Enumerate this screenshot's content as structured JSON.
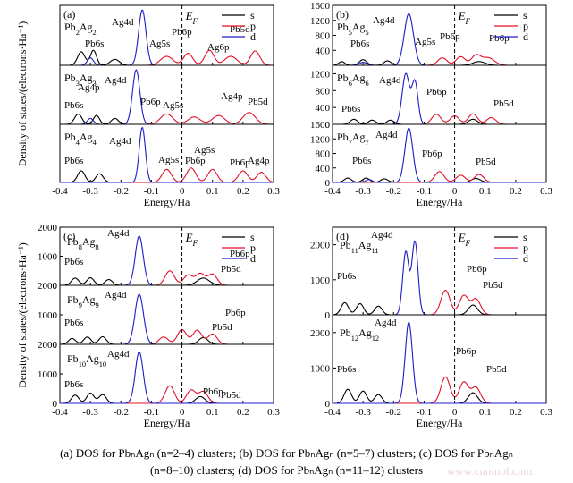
{
  "caption": {
    "line1": "(a) DOS for PbₙAgₙ (n=2–4) clusters; (b) DOS for PbₙAgₙ (n=5–7) clusters; (c) DOS for PbₙAgₙ",
    "line2": "(n=8–10) clusters; (d) DOS for PbₙAgₙ (n=11–12) clusters"
  },
  "watermark": "www.cnnmol.com",
  "colors": {
    "s": "#000000",
    "p": "#e0102a",
    "d": "#1c1cc8"
  },
  "chart_data": [
    {
      "id": "a",
      "type": "line",
      "panel_label": "(a)",
      "xlabel": "Energy/Ha",
      "ylabel": "Density of states/(electrons·Ha⁻¹)",
      "xlim": [
        -0.4,
        0.3
      ],
      "xticks": [
        "-0.4",
        "-0.3",
        "-0.2",
        "-0.1",
        "0",
        "0.1",
        "0.2",
        "0.3"
      ],
      "fermi_label": "EF",
      "fermi_x": 0,
      "legend": [
        "s",
        "p",
        "d"
      ],
      "legend_position": "top-right",
      "subplots": [
        {
          "cluster": "Pb2Ag2",
          "ylim": [
            0,
            200
          ],
          "yticks": [],
          "peaks": {
            "s": [
              [
                -0.33,
                45,
                0.012
              ],
              [
                -0.29,
                50,
                0.01
              ],
              [
                -0.22,
                20,
                0.015
              ]
            ],
            "p": [
              [
                -0.05,
                30,
                0.02
              ],
              [
                0.02,
                40,
                0.015
              ],
              [
                0.09,
                50,
                0.015
              ],
              [
                0.16,
                30,
                0.02
              ],
              [
                0.24,
                48,
                0.015
              ]
            ],
            "d": [
              [
                -0.13,
                185,
                0.012
              ],
              [
                -0.3,
                25,
                0.01
              ]
            ]
          },
          "annotations": [
            "Ag4d",
            "Pb6s",
            "Ag5s",
            "Pb6p",
            "Ag6p",
            "Pb5d"
          ]
        },
        {
          "cluster": "Pb3Ag3",
          "ylim": [
            0,
            200
          ],
          "yticks": [],
          "peaks": {
            "s": [
              [
                -0.34,
                35,
                0.012
              ],
              [
                -0.28,
                30,
                0.01
              ],
              [
                -0.22,
                20,
                0.012
              ]
            ],
            "p": [
              [
                -0.05,
                35,
                0.02
              ],
              [
                0.04,
                25,
                0.02
              ],
              [
                0.12,
                30,
                0.02
              ],
              [
                0.22,
                40,
                0.02
              ]
            ],
            "d": [
              [
                -0.15,
                185,
                0.012
              ],
              [
                -0.3,
                20,
                0.01
              ]
            ]
          },
          "annotations": [
            "Ag4d",
            "Pb6s",
            "Ag4p",
            "Pb6p",
            "Ag5s",
            "Ag4p",
            "Pb5d"
          ]
        },
        {
          "cluster": "Pb4Ag4",
          "ylim": [
            0,
            200
          ],
          "yticks": [],
          "peaks": {
            "s": [
              [
                -0.33,
                40,
                0.012
              ],
              [
                -0.27,
                30,
                0.012
              ]
            ],
            "p": [
              [
                -0.05,
                45,
                0.015
              ],
              [
                0.03,
                50,
                0.015
              ],
              [
                0.1,
                45,
                0.015
              ],
              [
                0.2,
                40,
                0.015
              ],
              [
                0.26,
                35,
                0.015
              ]
            ],
            "d": [
              [
                -0.13,
                190,
                0.01
              ]
            ]
          },
          "annotations": [
            "Ag4d",
            "Pb6s",
            "Ag5s",
            "Pb6p",
            "Ag5s",
            "Pb6p",
            "Ag4p"
          ]
        }
      ]
    },
    {
      "id": "b",
      "type": "line",
      "panel_label": "(b)",
      "xlabel": "Energy/Ha",
      "ylabel": "",
      "xlim": [
        -0.4,
        0.3
      ],
      "xticks": [
        "-0.4",
        "-0.3",
        "-0.2",
        "-0.1",
        "0",
        "0.1",
        "0.2",
        "0.3"
      ],
      "fermi_label": "EF",
      "fermi_x": 0,
      "legend": [
        "s",
        "p",
        "d"
      ],
      "legend_position": "top-right",
      "subplots": [
        {
          "cluster": "Pb5Ag5",
          "ylim": [
            0,
            1600
          ],
          "yticks": [
            400,
            800,
            1200,
            1600
          ],
          "peaks": {
            "s": [
              [
                -0.37,
                100,
                0.01
              ],
              [
                -0.3,
                150,
                0.012
              ],
              [
                -0.22,
                120,
                0.012
              ],
              [
                0.08,
                100,
                0.02
              ]
            ],
            "p": [
              [
                -0.04,
                200,
                0.015
              ],
              [
                0.02,
                230,
                0.015
              ],
              [
                0.07,
                260,
                0.015
              ],
              [
                0.11,
                200,
                0.02
              ]
            ],
            "d": [
              [
                -0.15,
                1380,
                0.015
              ],
              [
                -0.3,
                80,
                0.012
              ]
            ]
          },
          "annotations": [
            "Ag4d",
            "Pb6s",
            "Ag5s",
            "Pb6p",
            "Pb6p"
          ]
        },
        {
          "cluster": "Pb6Ag6",
          "ylim": [
            0,
            1400
          ],
          "yticks": [
            0,
            400,
            800,
            1200
          ],
          "peaks": {
            "s": [
              [
                -0.33,
                120,
                0.012
              ],
              [
                -0.27,
                100,
                0.012
              ],
              [
                -0.21,
                100,
                0.012
              ],
              [
                0.06,
                120,
                0.015
              ]
            ],
            "p": [
              [
                -0.06,
                240,
                0.015
              ],
              [
                0.0,
                200,
                0.015
              ],
              [
                0.06,
                250,
                0.015
              ],
              [
                0.12,
                160,
                0.015
              ]
            ],
            "d": [
              [
                -0.16,
                1200,
                0.012
              ],
              [
                -0.13,
                1000,
                0.01
              ]
            ]
          },
          "annotations": [
            "Ag4d",
            "Pb6s",
            "Pb6p",
            "Pb5d"
          ]
        },
        {
          "cluster": "Pb7Ag7",
          "ylim": [
            0,
            1600
          ],
          "yticks": [
            0,
            400,
            800,
            1200,
            1600
          ],
          "peaks": {
            "s": [
              [
                -0.35,
                120,
                0.012
              ],
              [
                -0.29,
                120,
                0.012
              ],
              [
                -0.23,
                100,
                0.012
              ],
              [
                0.07,
                110,
                0.015
              ]
            ],
            "p": [
              [
                -0.05,
                300,
                0.015
              ],
              [
                0.02,
                200,
                0.015
              ],
              [
                0.08,
                220,
                0.015
              ]
            ],
            "d": [
              [
                -0.15,
                1500,
                0.013
              ],
              [
                -0.28,
                80,
                0.01
              ]
            ]
          },
          "annotations": [
            "Ag4d",
            "Pb6s",
            "Pb6p",
            "Pb5d"
          ]
        }
      ]
    },
    {
      "id": "c",
      "type": "line",
      "panel_label": "(c)",
      "xlabel": "Energy/Ha",
      "ylabel": "Density of states/(electrons·Ha⁻¹)",
      "xlim": [
        -0.4,
        0.3
      ],
      "xticks": [
        "-0.4",
        "-0.3",
        "-0.2",
        "-0.1",
        "0",
        "0.1",
        "0.2",
        "0.3"
      ],
      "fermi_label": "EF",
      "fermi_x": 0,
      "legend": [
        "s",
        "p",
        "d"
      ],
      "legend_position": "top-right",
      "subplots": [
        {
          "cluster": "Pb8Ag8",
          "ylim": [
            0,
            2000
          ],
          "yticks": [
            0,
            1000,
            2000
          ],
          "peaks": {
            "s": [
              [
                -0.35,
                250,
                0.012
              ],
              [
                -0.3,
                260,
                0.012
              ],
              [
                -0.24,
                200,
                0.012
              ],
              [
                0.07,
                250,
                0.02
              ]
            ],
            "p": [
              [
                -0.04,
                500,
                0.015
              ],
              [
                0.02,
                350,
                0.015
              ],
              [
                0.06,
                400,
                0.015
              ],
              [
                0.1,
                380,
                0.015
              ]
            ],
            "d": [
              [
                -0.14,
                1700,
                0.013
              ]
            ]
          },
          "annotations": [
            "Ag4d",
            "Pb6s",
            "Pb6p",
            "Pb5d"
          ]
        },
        {
          "cluster": "Pb9Ag9",
          "ylim": [
            0,
            2000
          ],
          "yticks": [
            0,
            1000,
            2000
          ],
          "peaks": {
            "s": [
              [
                -0.36,
                200,
                0.012
              ],
              [
                -0.31,
                250,
                0.012
              ],
              [
                -0.26,
                260,
                0.012
              ],
              [
                0.07,
                230,
                0.015
              ]
            ],
            "p": [
              [
                -0.06,
                250,
                0.015
              ],
              [
                0.0,
                500,
                0.015
              ],
              [
                0.05,
                480,
                0.015
              ],
              [
                0.1,
                350,
                0.015
              ]
            ],
            "d": [
              [
                -0.14,
                1700,
                0.014
              ]
            ]
          },
          "annotations": [
            "Ag4d",
            "Pb6s",
            "Pb6p",
            "Pb5d"
          ]
        },
        {
          "cluster": "Pb10Ag10",
          "ylim": [
            0,
            2000
          ],
          "yticks": [
            0,
            1000,
            2000
          ],
          "peaks": {
            "s": [
              [
                -0.35,
                280,
                0.012
              ],
              [
                -0.3,
                350,
                0.012
              ],
              [
                -0.26,
                300,
                0.012
              ],
              [
                0.06,
                230,
                0.015
              ]
            ],
            "p": [
              [
                -0.04,
                600,
                0.015
              ],
              [
                0.03,
                450,
                0.015
              ],
              [
                0.07,
                400,
                0.015
              ]
            ],
            "d": [
              [
                -0.14,
                1750,
                0.013
              ]
            ]
          },
          "annotations": [
            "Ag4d",
            "Pb6s",
            "Pb6p",
            "Pb5d"
          ]
        }
      ]
    },
    {
      "id": "d",
      "type": "line",
      "panel_label": "(d)",
      "xlabel": "Energy/Ha",
      "ylabel": "",
      "xlim": [
        -0.4,
        0.3
      ],
      "xticks": [
        "-0.4",
        "-0.3",
        "-0.2",
        "-0.1",
        "0",
        "0.1",
        "0.2",
        "0.3"
      ],
      "fermi_label": "EF",
      "fermi_x": 0,
      "legend": [
        "s",
        "p",
        "d"
      ],
      "legend_position": "top-right",
      "subplots": [
        {
          "cluster": "Pb11Ag11",
          "ylim": [
            0,
            2500
          ],
          "yticks": [
            0,
            1000,
            2000
          ],
          "peaks": {
            "s": [
              [
                -0.36,
                350,
                0.012
              ],
              [
                -0.31,
                320,
                0.012
              ],
              [
                -0.25,
                250,
                0.012
              ],
              [
                0.06,
                280,
                0.015
              ]
            ],
            "p": [
              [
                -0.03,
                700,
                0.015
              ],
              [
                0.03,
                550,
                0.015
              ],
              [
                0.07,
                450,
                0.015
              ]
            ],
            "d": [
              [
                -0.16,
                1800,
                0.01
              ],
              [
                -0.13,
                2100,
                0.01
              ]
            ]
          },
          "annotations": [
            "Ag4d",
            "Pb6s",
            "Pb6p",
            "Pb5d"
          ]
        },
        {
          "cluster": "Pb12Ag12",
          "ylim": [
            0,
            2500
          ],
          "yticks": [
            0,
            1000,
            2000
          ],
          "peaks": {
            "s": [
              [
                -0.35,
                400,
                0.012
              ],
              [
                -0.3,
                350,
                0.012
              ],
              [
                -0.25,
                250,
                0.012
              ],
              [
                0.06,
                300,
                0.015
              ]
            ],
            "p": [
              [
                -0.03,
                750,
                0.015
              ],
              [
                0.03,
                600,
                0.015
              ],
              [
                0.07,
                450,
                0.015
              ]
            ],
            "d": [
              [
                -0.15,
                2300,
                0.012
              ]
            ]
          },
          "annotations": [
            "Ag4d",
            "Pb6s",
            "Pb6p",
            "Pb5d"
          ]
        }
      ]
    }
  ]
}
